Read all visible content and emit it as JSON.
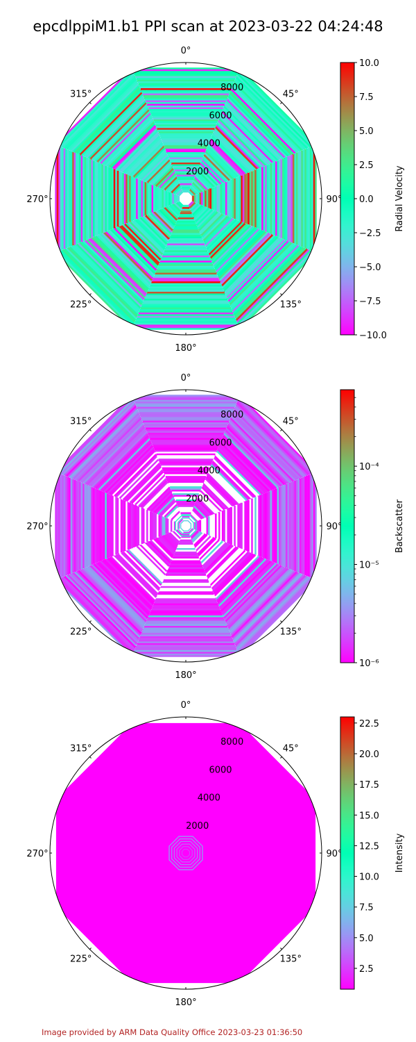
{
  "title": "epcdlppiM1.b1 PPI scan at 2023-03-22 04:24:48",
  "footer": "Image provided by ARM Data Quality Office 2023-03-23 01:36:50",
  "chart_data": [
    {
      "type": "heatmap",
      "projection": "polar",
      "angular_ticks": [
        "0°",
        "45°",
        "90°",
        "135°",
        "180°",
        "225°",
        "270°",
        "315°"
      ],
      "radial_ticks": [
        2000,
        4000,
        6000,
        8000
      ],
      "rmax": 9000,
      "colormap": "rainbow",
      "colorbar": {
        "label": "Radial Velocity",
        "scale": "linear",
        "range": [
          -10,
          10
        ],
        "ticks": [
          "−10.0",
          "−7.5",
          "−5.0",
          "−2.5",
          "0.0",
          "2.5",
          "5.0",
          "7.5",
          "10.0"
        ]
      },
      "pattern": "radial_velocity"
    },
    {
      "type": "heatmap",
      "projection": "polar",
      "angular_ticks": [
        "0°",
        "45°",
        "90°",
        "135°",
        "180°",
        "225°",
        "270°",
        "315°"
      ],
      "radial_ticks": [
        2000,
        4000,
        6000,
        8000
      ],
      "rmax": 9000,
      "colormap": "rainbow",
      "colorbar": {
        "label": "Backscatter",
        "scale": "log",
        "range": [
          1e-06,
          0.0006
        ],
        "ticks": [
          "10⁻⁶",
          "10⁻⁵",
          "10⁻⁴"
        ]
      },
      "pattern": "backscatter"
    },
    {
      "type": "heatmap",
      "projection": "polar",
      "angular_ticks": [
        "0°",
        "45°",
        "90°",
        "135°",
        "180°",
        "225°",
        "270°",
        "315°"
      ],
      "radial_ticks": [
        2000,
        4000,
        6000,
        8000
      ],
      "rmax": 9000,
      "colormap": "rainbow",
      "colorbar": {
        "label": "Intensity",
        "scale": "linear",
        "range": [
          0.8,
          23
        ],
        "ticks": [
          "2.5",
          "5.0",
          "7.5",
          "10.0",
          "12.5",
          "15.0",
          "17.5",
          "20.0",
          "22.5"
        ]
      },
      "pattern": "intensity"
    }
  ]
}
